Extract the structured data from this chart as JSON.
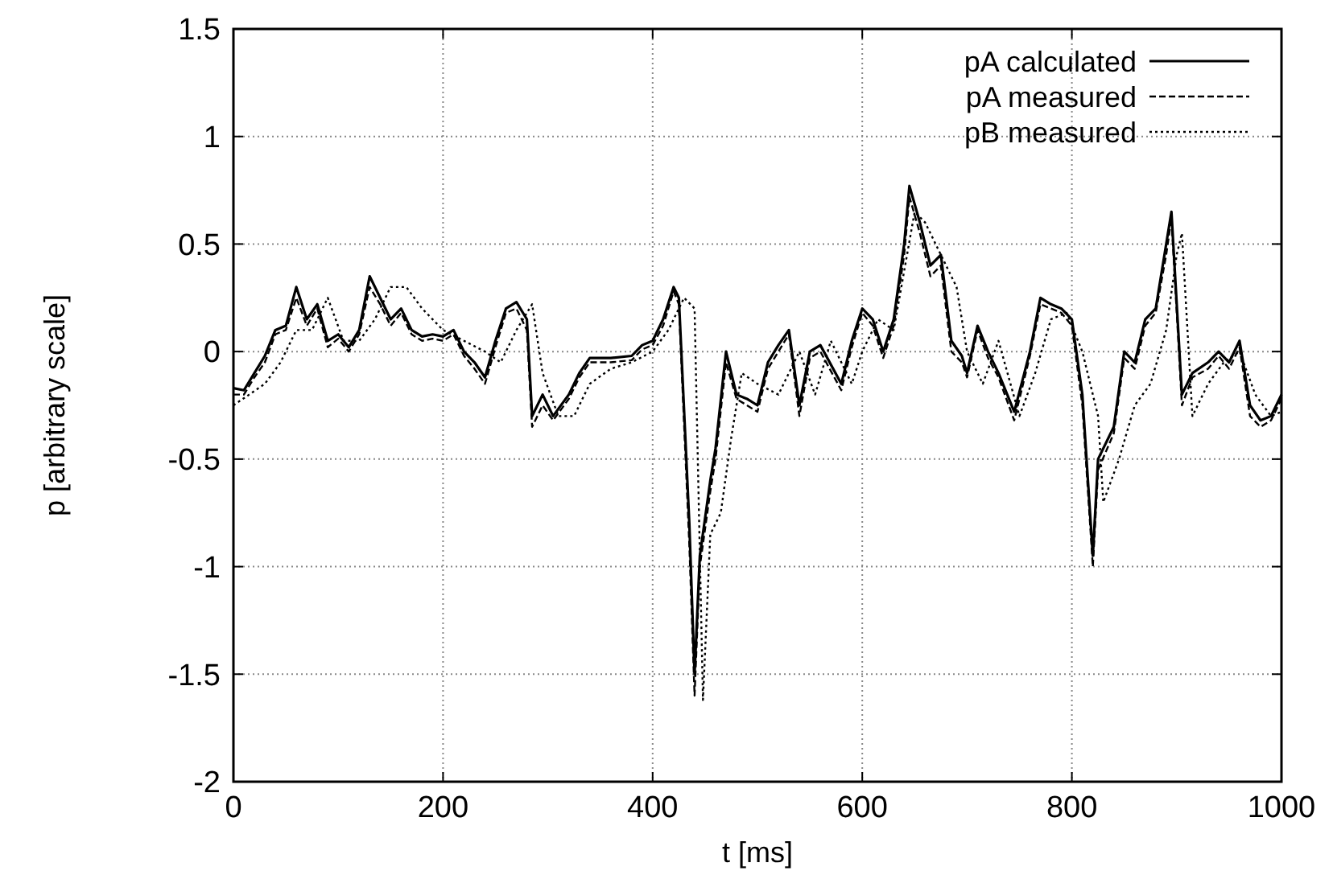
{
  "chart_data": {
    "type": "line",
    "xlabel": "t [ms]",
    "ylabel": "p [arbitrary scale]",
    "xlim": [
      0,
      1000
    ],
    "ylim": [
      -2,
      1.5
    ],
    "xticks": [
      0,
      200,
      400,
      600,
      800,
      1000
    ],
    "yticks": [
      -2,
      -1.5,
      -1,
      -0.5,
      0,
      0.5,
      1,
      1.5
    ],
    "grid": true,
    "legend": "top right",
    "series": [
      {
        "name": "pA calculated",
        "color": "#000000",
        "line_style": "solid",
        "x": [
          0,
          10,
          20,
          30,
          40,
          50,
          60,
          70,
          80,
          90,
          100,
          110,
          120,
          130,
          140,
          150,
          160,
          170,
          180,
          190,
          200,
          210,
          220,
          230,
          240,
          250,
          260,
          270,
          280,
          285,
          295,
          305,
          320,
          330,
          340,
          360,
          380,
          390,
          400,
          410,
          420,
          425,
          435,
          440,
          445,
          455,
          460,
          470,
          480,
          490,
          500,
          510,
          520,
          530,
          540,
          550,
          560,
          580,
          590,
          600,
          610,
          620,
          630,
          640,
          645,
          655,
          665,
          675,
          685,
          695,
          700,
          710,
          720,
          730,
          745,
          760,
          770,
          780,
          790,
          800,
          810,
          820,
          825,
          840,
          850,
          860,
          870,
          880,
          890,
          895,
          905,
          915,
          930,
          940,
          950,
          960,
          970,
          980,
          990,
          1000
        ],
        "values": [
          -0.17,
          -0.18,
          -0.1,
          -0.02,
          0.1,
          0.12,
          0.3,
          0.15,
          0.22,
          0.05,
          0.08,
          0.02,
          0.1,
          0.35,
          0.25,
          0.15,
          0.2,
          0.1,
          0.07,
          0.08,
          0.07,
          0.1,
          0,
          -0.05,
          -0.12,
          0.05,
          0.2,
          0.23,
          0.15,
          -0.3,
          -0.2,
          -0.3,
          -0.2,
          -0.1,
          -0.03,
          -0.03,
          -0.02,
          0.03,
          0.05,
          0.15,
          0.3,
          0.25,
          -0.8,
          -1.5,
          -0.95,
          -0.6,
          -0.45,
          0,
          -0.2,
          -0.22,
          -0.25,
          -0.05,
          0.03,
          0.1,
          -0.25,
          0,
          0.03,
          -0.15,
          0.05,
          0.2,
          0.15,
          0,
          0.15,
          0.5,
          0.77,
          0.6,
          0.4,
          0.45,
          0.05,
          -0.02,
          -0.1,
          0.12,
          0,
          -0.1,
          -0.28,
          0,
          0.25,
          0.22,
          0.2,
          0.15,
          -0.2,
          -0.95,
          -0.5,
          -0.35,
          0,
          -0.05,
          0.15,
          0.2,
          0.5,
          0.65,
          -0.2,
          -0.1,
          -0.05,
          0,
          -0.05,
          0.05,
          -0.25,
          -0.32,
          -0.3,
          -0.2
        ]
      },
      {
        "name": "pA measured",
        "color": "#000000",
        "line_style": "dashed",
        "x": [
          0,
          10,
          20,
          30,
          40,
          50,
          60,
          70,
          80,
          90,
          100,
          110,
          120,
          130,
          140,
          150,
          160,
          170,
          180,
          190,
          200,
          210,
          220,
          230,
          240,
          250,
          260,
          270,
          280,
          285,
          295,
          305,
          320,
          330,
          340,
          360,
          380,
          390,
          400,
          410,
          420,
          425,
          435,
          440,
          445,
          455,
          460,
          470,
          480,
          490,
          500,
          510,
          520,
          530,
          540,
          550,
          560,
          580,
          590,
          600,
          610,
          620,
          630,
          640,
          645,
          655,
          665,
          675,
          685,
          695,
          700,
          710,
          720,
          730,
          745,
          760,
          770,
          780,
          790,
          800,
          810,
          820,
          825,
          840,
          850,
          860,
          870,
          880,
          890,
          895,
          905,
          915,
          930,
          940,
          950,
          960,
          970,
          980,
          990,
          1000
        ],
        "values": [
          -0.2,
          -0.2,
          -0.12,
          -0.05,
          0.08,
          0.1,
          0.25,
          0.12,
          0.2,
          0.02,
          0.06,
          0,
          0.08,
          0.3,
          0.22,
          0.12,
          0.18,
          0.08,
          0.05,
          0.06,
          0.05,
          0.08,
          -0.02,
          -0.08,
          -0.15,
          0.02,
          0.18,
          0.2,
          0.1,
          -0.35,
          -0.25,
          -0.32,
          -0.22,
          -0.12,
          -0.05,
          -0.05,
          -0.04,
          0.01,
          0.03,
          0.12,
          0.28,
          0.22,
          -0.9,
          -1.6,
          -1.0,
          -0.65,
          -0.5,
          -0.05,
          -0.22,
          -0.25,
          -0.28,
          -0.08,
          0,
          0.08,
          -0.3,
          -0.03,
          0,
          -0.18,
          0.02,
          0.18,
          0.12,
          -0.03,
          0.12,
          0.45,
          0.72,
          0.55,
          0.35,
          0.4,
          0,
          -0.05,
          -0.12,
          0.1,
          -0.03,
          -0.12,
          -0.32,
          -0.02,
          0.22,
          0.2,
          0.18,
          0.12,
          -0.25,
          -1.0,
          -0.55,
          -0.38,
          -0.03,
          -0.08,
          0.12,
          0.18,
          0.45,
          0.62,
          -0.25,
          -0.12,
          -0.08,
          -0.02,
          -0.08,
          0.02,
          -0.3,
          -0.35,
          -0.32,
          -0.22
        ]
      },
      {
        "name": "pB measured",
        "color": "#000000",
        "line_style": "dotted",
        "x": [
          0,
          15,
          30,
          45,
          60,
          75,
          90,
          105,
          120,
          135,
          150,
          165,
          180,
          200,
          220,
          240,
          255,
          270,
          285,
          295,
          310,
          325,
          340,
          360,
          380,
          400,
          415,
          430,
          440,
          448,
          455,
          465,
          475,
          485,
          500,
          520,
          540,
          555,
          570,
          590,
          600,
          615,
          630,
          650,
          660,
          670,
          690,
          700,
          715,
          730,
          750,
          765,
          780,
          795,
          810,
          825,
          830,
          845,
          860,
          875,
          890,
          900,
          905,
          915,
          930,
          945,
          960,
          975,
          990,
          1000
        ],
        "values": [
          -0.25,
          -0.2,
          -0.15,
          -0.05,
          0.1,
          0.1,
          0.25,
          0.05,
          0.05,
          0.15,
          0.3,
          0.3,
          0.2,
          0.1,
          0.05,
          0,
          -0.05,
          0.1,
          0.22,
          -0.1,
          -0.3,
          -0.3,
          -0.15,
          -0.08,
          -0.05,
          0,
          0.1,
          0.25,
          0.2,
          -1.62,
          -0.85,
          -0.75,
          -0.4,
          -0.1,
          -0.15,
          -0.2,
          0,
          -0.2,
          0.05,
          -0.15,
          0,
          0.15,
          0.1,
          0.65,
          0.6,
          0.5,
          0.3,
          0,
          -0.15,
          0.05,
          -0.3,
          -0.1,
          0.15,
          0.18,
          0.0,
          -0.3,
          -0.7,
          -0.5,
          -0.25,
          -0.15,
          0.1,
          0.45,
          0.55,
          -0.3,
          -0.15,
          -0.05,
          0,
          -0.2,
          -0.3,
          -0.28
        ]
      }
    ]
  }
}
